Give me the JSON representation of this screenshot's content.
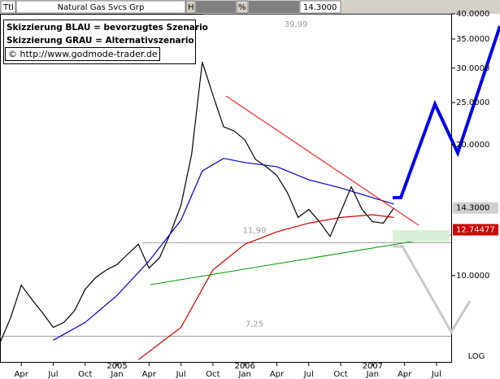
{
  "chart_data": {
    "type": "line",
    "title": "Natural Gas Svcs Grp",
    "toolbar": [
      "Ttl",
      "H",
      "%",
      "14.3000"
    ],
    "notes": [
      "Skizzierung BLAU = bevorzugtes Szenario",
      "Skizzierung GRAU = Alternativszenario",
      "© http://www.godmode-trader.de"
    ],
    "log_scale": true,
    "xlim": [
      "2004-02",
      "2007-08"
    ],
    "ylim": [
      6.3,
      40
    ],
    "yticks": [
      {
        "value": 10,
        "label": "10.0000"
      },
      {
        "value": 20,
        "label": "20.0000"
      },
      {
        "value": 25,
        "label": "25.0000"
      },
      {
        "value": 30,
        "label": "30.0000"
      },
      {
        "value": 35,
        "label": "35.0000"
      },
      {
        "value": 40,
        "label": "40.0000"
      }
    ],
    "scale_label": "LOG",
    "xticks": [
      {
        "value": "2004-04",
        "label": "Apr"
      },
      {
        "value": "2004-07",
        "label": "Jul"
      },
      {
        "value": "2004-10",
        "label": "Oct"
      },
      {
        "value": "2005-01",
        "label": "Jan"
      },
      {
        "value": "2005-04",
        "label": "Apr"
      },
      {
        "value": "2005-07",
        "label": "Jul"
      },
      {
        "value": "2005-10",
        "label": "Oct"
      },
      {
        "value": "2006-01",
        "label": "Jan"
      },
      {
        "value": "2006-04",
        "label": "Apr"
      },
      {
        "value": "2006-07",
        "label": "Jul"
      },
      {
        "value": "2006-10",
        "label": "Oct"
      },
      {
        "value": "2007-01",
        "label": "Jan"
      },
      {
        "value": "2007-04",
        "label": "Apr"
      },
      {
        "value": "2007-07",
        "label": "Jul"
      }
    ],
    "year_labels": [
      {
        "value": "2005-01",
        "label": "2005"
      },
      {
        "value": "2006-01",
        "label": "2006"
      },
      {
        "value": "2007-01",
        "label": "2007"
      }
    ],
    "series": [
      {
        "color": "#000000",
        "x": [
          "2004-02",
          "2004-03",
          "2004-04",
          "2004-05",
          "2004-06",
          "2004-07",
          "2004-08",
          "2004-09",
          "2004-10",
          "2004-11",
          "2004-12",
          "2005-01",
          "2005-02",
          "2005-03",
          "2005-04",
          "2005-05",
          "2005-06",
          "2005-07",
          "2005-08",
          "2005-09",
          "2005-10",
          "2005-11",
          "2005-12",
          "2006-01",
          "2006-02",
          "2006-03",
          "2006-04",
          "2006-05",
          "2006-06",
          "2006-07",
          "2006-08",
          "2006-09",
          "2006-10",
          "2006-11",
          "2006-12",
          "2007-01",
          "2007-02",
          "2007-03"
        ],
        "values": [
          7.0,
          8.0,
          9.5,
          8.8,
          8.2,
          7.6,
          7.8,
          8.3,
          9.3,
          9.9,
          10.3,
          10.6,
          11.2,
          11.8,
          10.4,
          11.0,
          12.5,
          14.5,
          19.0,
          31.0,
          26.0,
          22.0,
          21.5,
          20.5,
          18.5,
          17.8,
          17.0,
          15.5,
          13.6,
          14.2,
          13.3,
          12.3,
          14.0,
          16.0,
          14.2,
          13.3,
          13.2,
          14.3
        ]
      },
      {
        "color": "#0000cc",
        "x": [
          "2004-07",
          "2004-10",
          "2005-01",
          "2005-04",
          "2005-07",
          "2005-09",
          "2005-11",
          "2006-01",
          "2006-04",
          "2006-07",
          "2006-10",
          "2007-01",
          "2007-03"
        ],
        "values": [
          7.1,
          7.8,
          9.0,
          10.8,
          13.4,
          17.4,
          18.6,
          18.2,
          17.8,
          16.6,
          15.9,
          15.1,
          14.6
        ]
      },
      {
        "color": "#cc0000",
        "x": [
          "2005-03",
          "2005-07",
          "2005-10",
          "2006-01",
          "2006-04",
          "2006-07",
          "2006-10",
          "2007-01",
          "2007-03"
        ],
        "values": [
          6.4,
          7.6,
          10.3,
          11.8,
          12.6,
          13.2,
          13.6,
          13.8,
          13.6
        ]
      }
    ],
    "levels": [
      {
        "value": 39.99,
        "label": "39,99"
      },
      {
        "value": 11.9,
        "label": "11,90"
      },
      {
        "value": 7.25,
        "label": "7,25"
      }
    ],
    "last_price": {
      "value": 14.3,
      "label": "14.3000"
    },
    "ma_price": 12.74477
  }
}
